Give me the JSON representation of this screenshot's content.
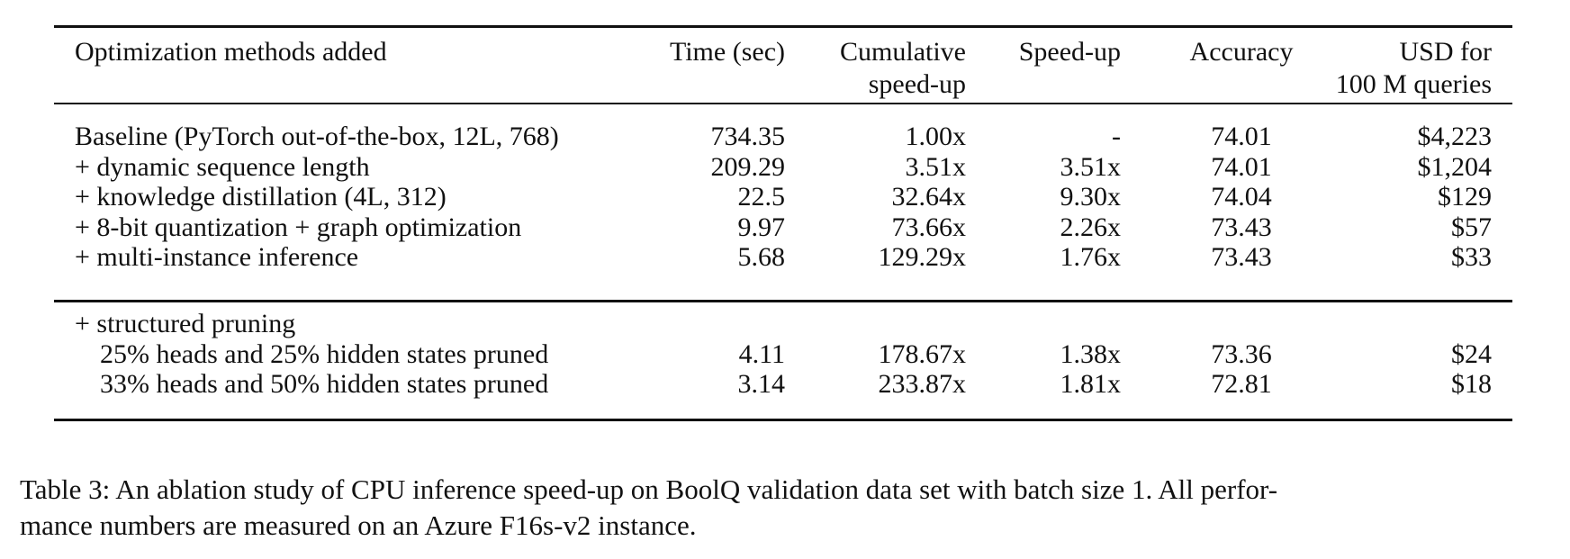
{
  "table": {
    "headers": [
      {
        "key": "method",
        "lines": [
          "Optimization methods added"
        ]
      },
      {
        "key": "time",
        "lines": [
          "Time (sec)"
        ]
      },
      {
        "key": "cumulative",
        "lines": [
          "Cumulative",
          "speed-up"
        ]
      },
      {
        "key": "speedup",
        "lines": [
          "Speed-up"
        ]
      },
      {
        "key": "accuracy",
        "lines": [
          "Accuracy"
        ]
      },
      {
        "key": "usd",
        "lines": [
          "USD for",
          "100 M queries"
        ]
      }
    ],
    "groups": [
      {
        "rows": [
          {
            "method": "Baseline (PyTorch out-of-the-box, 12L, 768)",
            "time": "734.35",
            "cumulative": "1.00x",
            "speedup": "-",
            "accuracy": "74.01",
            "usd": "$4,223"
          },
          {
            "method": "+ dynamic sequence length",
            "time": "209.29",
            "cumulative": "3.51x",
            "speedup": "3.51x",
            "accuracy": "74.01",
            "usd": "$1,204"
          },
          {
            "method": "+ knowledge distillation (4L, 312)",
            "time": "22.5",
            "cumulative": "32.64x",
            "speedup": "9.30x",
            "accuracy": "74.04",
            "usd": "$129"
          },
          {
            "method": "+ 8-bit quantization + graph optimization",
            "time": "9.97",
            "cumulative": "73.66x",
            "speedup": "2.26x",
            "accuracy": "73.43",
            "usd": "$57"
          },
          {
            "method": "+ multi-instance inference",
            "time": "5.68",
            "cumulative": "129.29x",
            "speedup": "1.76x",
            "accuracy": "73.43",
            "usd": "$33"
          }
        ]
      },
      {
        "rows": [
          {
            "method": "+ structured pruning",
            "time": "",
            "cumulative": "",
            "speedup": "",
            "accuracy": "",
            "usd": ""
          },
          {
            "method": "25% heads and 25% hidden states pruned",
            "indent": true,
            "time": "4.11",
            "cumulative": "178.67x",
            "speedup": "1.38x",
            "accuracy": "73.36",
            "usd": "$24"
          },
          {
            "method": "33% heads and 50% hidden states pruned",
            "indent": true,
            "time": "3.14",
            "cumulative": "233.87x",
            "speedup": "1.81x",
            "accuracy": "72.81",
            "usd": "$18"
          }
        ]
      }
    ]
  },
  "caption": {
    "line1": "Table 3: An ablation study of CPU inference speed-up on BoolQ validation data set with batch size 1. All perfor-",
    "line2": "mance numbers are measured on an Azure F16s-v2 instance."
  }
}
